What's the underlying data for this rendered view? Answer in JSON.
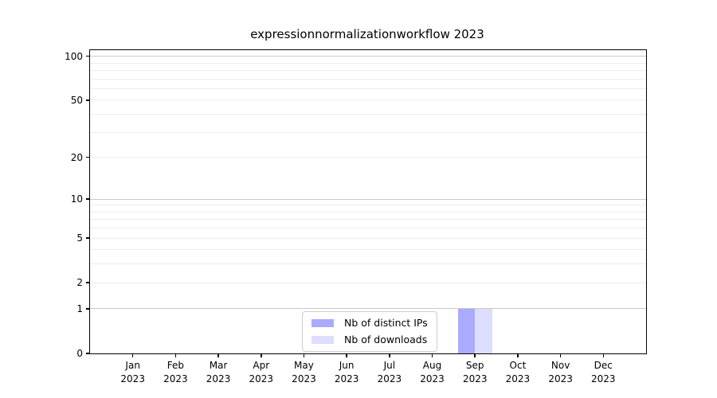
{
  "chart_data": {
    "type": "bar",
    "title": "expressionnormalizationworkflow 2023",
    "categories": [
      "Jan 2023",
      "Feb 2023",
      "Mar 2023",
      "Apr 2023",
      "May 2023",
      "Jun 2023",
      "Jul 2023",
      "Aug 2023",
      "Sep 2023",
      "Oct 2023",
      "Nov 2023",
      "Dec 2023"
    ],
    "series": [
      {
        "name": "Nb of distinct IPs",
        "color": "#aaaaff",
        "values": [
          0,
          0,
          0,
          0,
          0,
          0,
          0,
          0,
          1,
          0,
          0,
          0
        ]
      },
      {
        "name": "Nb of downloads",
        "color": "#ddddff",
        "values": [
          0,
          0,
          0,
          0,
          0,
          0,
          0,
          0,
          1,
          0,
          0,
          0
        ]
      }
    ],
    "xlabel": "",
    "ylabel": "",
    "yscale": "log1p",
    "ylim": [
      0,
      110
    ],
    "yticks": [
      0,
      1,
      2,
      5,
      10,
      20,
      50,
      100
    ],
    "major_gridlines": [
      1,
      10,
      100
    ],
    "minor_gridlines": [
      2,
      3,
      4,
      5,
      6,
      7,
      8,
      9,
      20,
      30,
      40,
      50,
      60,
      70,
      80,
      90
    ],
    "grid": true,
    "legend_position": "lower center",
    "bar_width_fraction": 0.4,
    "colors": {
      "grid_major": "#c9c9c9",
      "grid_minor": "#ececec",
      "axis": "#000000",
      "background": "#ffffff"
    }
  }
}
